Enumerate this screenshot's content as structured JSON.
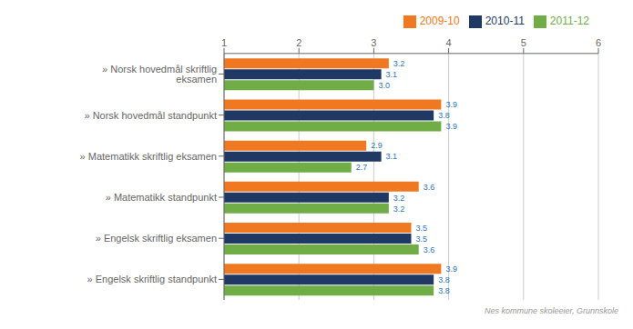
{
  "chart_data": {
    "type": "bar",
    "orientation": "horizontal",
    "categories": [
      "» Norsk hovedmål skriftlig eksamen",
      "» Norsk hovedmål standpunkt",
      "» Matematikk skriftlig eksamen",
      "» Matematikk standpunkt",
      "» Engelsk skriftlig eksamen",
      "» Engelsk skriftlig standpunkt"
    ],
    "series": [
      {
        "name": "2009-10",
        "color": "#f07820",
        "values": [
          3.2,
          3.9,
          2.9,
          3.6,
          3.5,
          3.9
        ]
      },
      {
        "name": "2010-11",
        "color": "#1f3864",
        "values": [
          3.1,
          3.8,
          3.1,
          3.2,
          3.5,
          3.8
        ]
      },
      {
        "name": "2011-12",
        "color": "#70ad47",
        "values": [
          3.0,
          3.9,
          2.7,
          3.2,
          3.6,
          3.8
        ],
        "value_labels": [
          "3.0",
          "3.9",
          "2.7",
          "3.2",
          "3.6",
          "3.8"
        ]
      }
    ],
    "xlim": [
      1,
      6
    ],
    "xticks": [
      1,
      2,
      3,
      4,
      5,
      6
    ],
    "grid": true,
    "legend": "upper right",
    "data_labels": true,
    "annotations": [
      "Nes kommune skoleeier, Grunnskole"
    ]
  }
}
